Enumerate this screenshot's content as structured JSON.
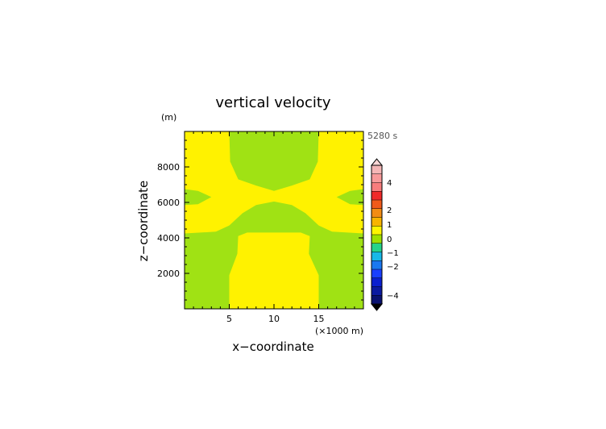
{
  "chart_data": {
    "type": "heatmap",
    "title": "vertical velocity",
    "xlabel": "x−coordinate",
    "ylabel": "z−coordinate",
    "x_unit": "(×1000 m)",
    "y_unit": "(m)",
    "time_label": "5280 s",
    "xlim": [
      0,
      20
    ],
    "ylim": [
      0,
      10000
    ],
    "x_ticks": [
      5,
      10,
      15
    ],
    "x_tick_labels": [
      "5",
      "10",
      "15"
    ],
    "y_ticks": [
      2000,
      4000,
      6000,
      8000
    ],
    "y_tick_labels": [
      "2000",
      "4000",
      "6000",
      "8000"
    ],
    "colorbar": {
      "labels": [
        {
          "value": 4,
          "text": "4"
        },
        {
          "value": 2,
          "text": "2"
        },
        {
          "value": 1,
          "text": "1"
        },
        {
          "value": 0,
          "text": "0"
        },
        {
          "value": -1,
          "text": "−1"
        },
        {
          "value": -2,
          "text": "−2"
        },
        {
          "value": -4,
          "text": "−4"
        }
      ],
      "bins": [
        {
          "color": "#f4b6b6"
        },
        {
          "color": "#f79a9a"
        },
        {
          "color": "#f77d7d"
        },
        {
          "color": "#ef2a2a"
        },
        {
          "color": "#f05a1a"
        },
        {
          "color": "#f28c14"
        },
        {
          "color": "#f8b400"
        },
        {
          "color": "#fff500"
        },
        {
          "color": "#9ee000"
        },
        {
          "color": "#25d38a"
        },
        {
          "color": "#17b8e8"
        },
        {
          "color": "#1a78f0"
        },
        {
          "color": "#1a40ff"
        },
        {
          "color": "#0a1fd0"
        },
        {
          "color": "#0b1aa0"
        },
        {
          "color": "#0a1270"
        }
      ]
    },
    "field_colors": {
      "positive_small": "#fff200",
      "negative_small": "#a0e214"
    },
    "regions": [
      {
        "name": "top-center-green",
        "sign": "negative",
        "points": [
          [
            5,
            10000
          ],
          [
            15,
            10000
          ],
          [
            14.9,
            8300
          ],
          [
            14,
            7300
          ],
          [
            12,
            6950
          ],
          [
            10,
            6650
          ],
          [
            8,
            6950
          ],
          [
            6,
            7300
          ],
          [
            5.1,
            8300
          ]
        ]
      },
      {
        "name": "left-mid-green",
        "sign": "negative",
        "points": [
          [
            0,
            6750
          ],
          [
            1.5,
            6650
          ],
          [
            3,
            6300
          ],
          [
            1.5,
            5900
          ],
          [
            0,
            5850
          ]
        ]
      },
      {
        "name": "right-mid-green",
        "sign": "negative",
        "points": [
          [
            20,
            6750
          ],
          [
            18.5,
            6650
          ],
          [
            17,
            6300
          ],
          [
            18.5,
            5900
          ],
          [
            20,
            5850
          ]
        ]
      },
      {
        "name": "middle-green-band",
        "sign": "negative",
        "points": [
          [
            0,
            4250
          ],
          [
            3.5,
            4350
          ],
          [
            5,
            4700
          ],
          [
            6.5,
            5400
          ],
          [
            8,
            5850
          ],
          [
            10,
            6050
          ],
          [
            12,
            5850
          ],
          [
            13.5,
            5400
          ],
          [
            15,
            4700
          ],
          [
            16.5,
            4350
          ],
          [
            20,
            4250
          ],
          [
            20,
            0
          ],
          [
            15,
            0
          ],
          [
            15,
            1900
          ],
          [
            13.9,
            3100
          ],
          [
            14,
            4100
          ],
          [
            13,
            4300
          ],
          [
            7,
            4300
          ],
          [
            6,
            4100
          ],
          [
            5.9,
            3100
          ],
          [
            5,
            1900
          ],
          [
            5,
            0
          ],
          [
            0,
            0
          ]
        ]
      }
    ]
  }
}
